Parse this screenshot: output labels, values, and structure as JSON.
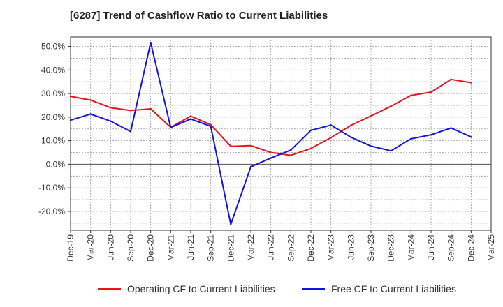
{
  "chart_data": {
    "type": "line",
    "title": "[6287]  Trend of Cashflow Ratio to Current Liabilities",
    "xlabel": "",
    "ylabel": "",
    "ylim": [
      -28,
      54
    ],
    "y_ticks": [
      "50.0%",
      "40.0%",
      "30.0%",
      "20.0%",
      "10.0%",
      "0.0%",
      "-10.0%",
      "-20.0%"
    ],
    "y_tick_values": [
      50,
      40,
      30,
      20,
      10,
      0,
      -10,
      -20
    ],
    "x_ticks": [
      "Dec-19",
      "Mar-20",
      "Jun-20",
      "Sep-20",
      "Dec-20",
      "Mar-21",
      "Jun-21",
      "Sep-21",
      "Dec-21",
      "Mar-22",
      "Jun-22",
      "Sep-22",
      "Dec-22",
      "Mar-23",
      "Jun-23",
      "Sep-23",
      "Dec-23",
      "Mar-24",
      "Jun-24",
      "Sep-24",
      "Dec-24",
      "Mar-25"
    ],
    "grid": true,
    "legend_position": "bottom",
    "series": [
      {
        "name": "Operating CF to Current Liabilities",
        "color": "#e8141b",
        "values": [
          28.8,
          27.2,
          24.0,
          22.8,
          23.5,
          15.7,
          20.4,
          16.8,
          7.6,
          7.9,
          5.0,
          3.8,
          6.7,
          11.3,
          16.5,
          20.5,
          24.6,
          29.2,
          30.6,
          36.0,
          34.6,
          null
        ]
      },
      {
        "name": "Free CF to Current Liabilities",
        "color": "#1414e0",
        "values": [
          18.7,
          21.3,
          18.3,
          13.9,
          51.6,
          15.6,
          19.2,
          16.1,
          -25.5,
          -1.1,
          2.6,
          6.0,
          14.4,
          16.6,
          11.5,
          7.7,
          5.7,
          10.8,
          12.5,
          15.4,
          11.6,
          null
        ]
      }
    ]
  }
}
